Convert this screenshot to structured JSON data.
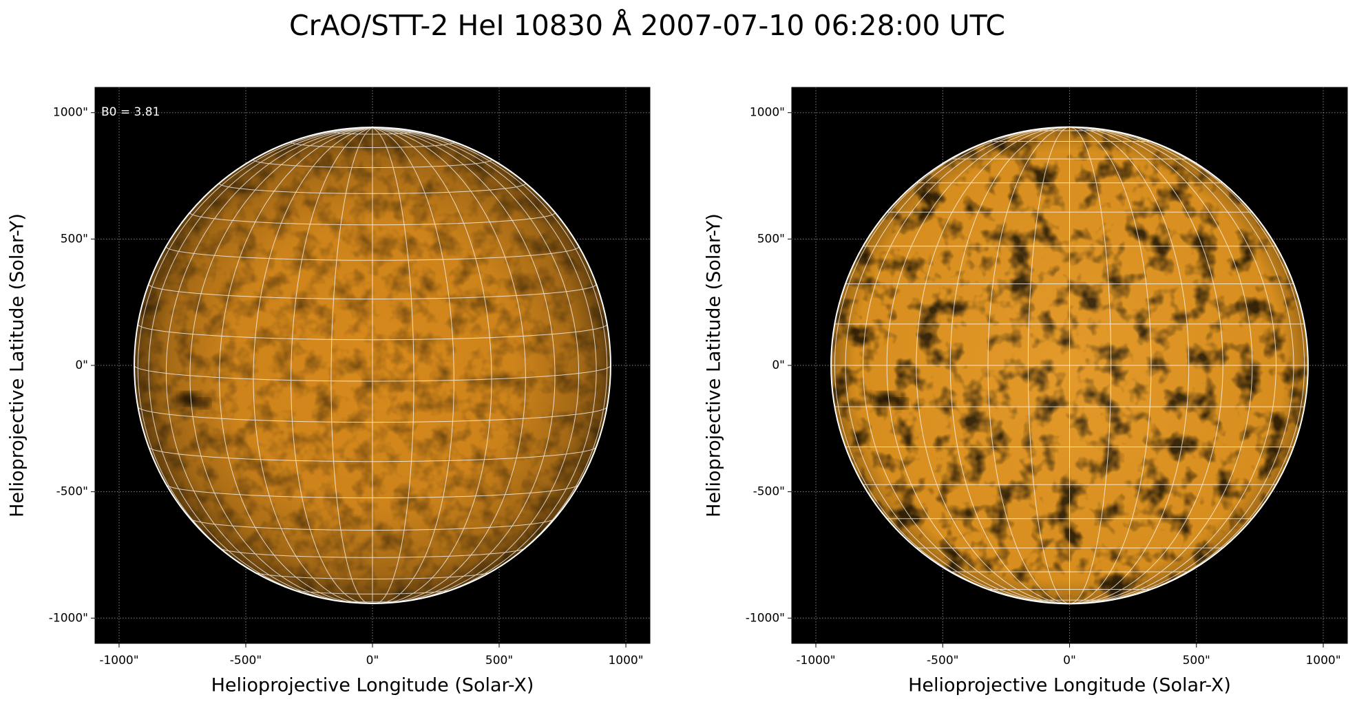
{
  "chart_data": {
    "title": "CrAO/STT-2 HeI 10830 Å 2007-07-10 06:28:00 UTC",
    "panels": [
      {
        "type": "image",
        "xlabel": "Helioprojective Longitude (Solar-X)",
        "ylabel": "Helioprojective Latitude (Solar-Y)",
        "annotation": "B0 = 3.81",
        "b0": 3.81,
        "radius": 940,
        "limb_darkening": true,
        "color": "#d88a1c",
        "xlim": [
          -1095,
          1095
        ],
        "ylim": [
          -1100,
          1100
        ],
        "xticks": [
          {
            "value": -1000,
            "label": "-1000\""
          },
          {
            "value": -500,
            "label": "-500\""
          },
          {
            "value": 0,
            "label": "0\""
          },
          {
            "value": 500,
            "label": "500\""
          },
          {
            "value": 1000,
            "label": "1000\""
          }
        ],
        "yticks": [
          {
            "value": -1000,
            "label": "-1000\""
          },
          {
            "value": -500,
            "label": "-500\""
          },
          {
            "value": 0,
            "label": "0\""
          },
          {
            "value": 500,
            "label": "500\""
          },
          {
            "value": 1000,
            "label": "1000\""
          }
        ]
      },
      {
        "type": "image",
        "xlabel": "Helioprojective Longitude (Solar-X)",
        "ylabel": "Helioprojective Latitude (Solar-Y)",
        "radius": 940,
        "limb_darkening": false,
        "color": "#e2951f",
        "xlim": [
          -1095,
          1095
        ],
        "ylim": [
          -1100,
          1100
        ],
        "xticks": [
          {
            "value": -1000,
            "label": "-1000\""
          },
          {
            "value": -500,
            "label": "-500\""
          },
          {
            "value": 0,
            "label": "0\""
          },
          {
            "value": 500,
            "label": "500\""
          },
          {
            "value": 1000,
            "label": "1000\""
          }
        ],
        "yticks": [
          {
            "value": -1000,
            "label": "-1000\""
          },
          {
            "value": -500,
            "label": "-500\""
          },
          {
            "value": 0,
            "label": "0\""
          },
          {
            "value": 500,
            "label": "500\""
          },
          {
            "value": 1000,
            "label": "1000\""
          }
        ]
      }
    ]
  }
}
